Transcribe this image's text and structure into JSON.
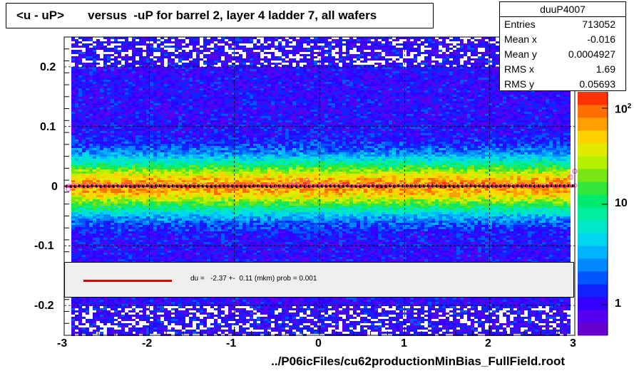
{
  "title": "<u - uP>       versus  -uP for barrel 2, layer 4 ladder 7, all wafers",
  "stats": {
    "name": "duuP4007",
    "rows": [
      {
        "key": "Entries",
        "value": "713052"
      },
      {
        "key": "Mean x",
        "value": "-0.016"
      },
      {
        "key": "Mean y",
        "value": "0.0004927"
      },
      {
        "key": "RMS x",
        "value": "1.69"
      },
      {
        "key": "RMS y",
        "value": "0.05693"
      }
    ]
  },
  "fit_text": "du =   -2.37 +-  0.11 (mkm) prob = 0.001",
  "xlabel": "../P06icFiles/cu62productionMinBias_FullField.root",
  "colors": {
    "fit_line": "#e00000",
    "profile_black": "#000000",
    "profile_open": "#ff33cc",
    "fit_box": "#efefef"
  },
  "chart_data": {
    "type": "heatmap",
    "xlim": [
      -3,
      3
    ],
    "ylim": [
      -0.25,
      0.25
    ],
    "x_ticks": [
      "-3",
      "-2",
      "-1",
      "0",
      "1",
      "2",
      "3"
    ],
    "y_ticks": [
      "-0.2",
      "-0.1",
      "0",
      "0.1",
      "0.2"
    ],
    "z_scale": "log",
    "z_ticks": [
      "1",
      "10",
      "10^2"
    ],
    "grid": true,
    "profile_series": [
      {
        "marker": "filled-black-circle",
        "x": [
          -3.0,
          -2.0,
          -1.0,
          0.0,
          1.0,
          2.0,
          3.0
        ],
        "y": [
          0.0,
          0.0,
          0.0,
          0.0,
          0.0,
          0.0,
          0.0
        ]
      },
      {
        "marker": "open-pink-circle",
        "x": [
          -2.95,
          -0.3,
          -0.15,
          2.95,
          3.0
        ],
        "y": [
          -0.005,
          0.007,
          0.01,
          0.015,
          0.025
        ]
      }
    ]
  }
}
